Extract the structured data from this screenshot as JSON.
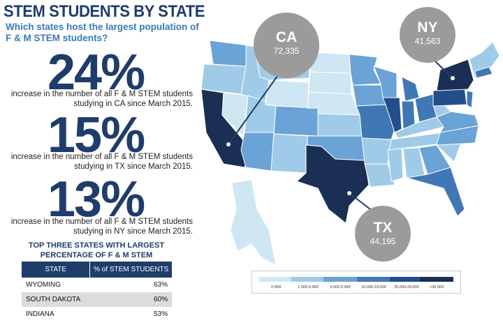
{
  "title": "STEM STUDENTS BY STATE",
  "subtitle": "Which states host the largest population of F & M STEM students?",
  "stats": [
    {
      "value": "24%",
      "text": "increase in the number of all F & M STEM students studying in CA since March 2015."
    },
    {
      "value": "15%",
      "text": "increase in the number of all F & M STEM students studying in TX since March 2015."
    },
    {
      "value": "13%",
      "text": "increase in the number of all F & M STEM students studying in NY since March 2015."
    }
  ],
  "table": {
    "title": "TOP THREE STATES WITH LARGEST PERCENTAGE OF F & M STEM STUDENTS",
    "headers": [
      "STATE",
      "% of STEM STUDENTS"
    ],
    "rows": [
      [
        "WYOMING",
        "63%"
      ],
      [
        "SOUTH DAKOTA",
        "60%"
      ],
      [
        "INDIANA",
        "53%"
      ]
    ]
  },
  "callouts": {
    "ca": {
      "state": "CA",
      "value": "72,335"
    },
    "ny": {
      "state": "NY",
      "value": "41,563"
    },
    "tx": {
      "state": "TX",
      "value": "44,195"
    }
  },
  "legend": {
    "labels": [
      "0-999",
      "1,000-4,999",
      "5,000-9,999",
      "10,000-19,000",
      "20,000-29,000",
      ">30,000"
    ],
    "colors": [
      "#cfe6f3",
      "#9fcbe8",
      "#6aa3d5",
      "#3f78b5",
      "#234e8a",
      "#1b2f55"
    ]
  }
}
